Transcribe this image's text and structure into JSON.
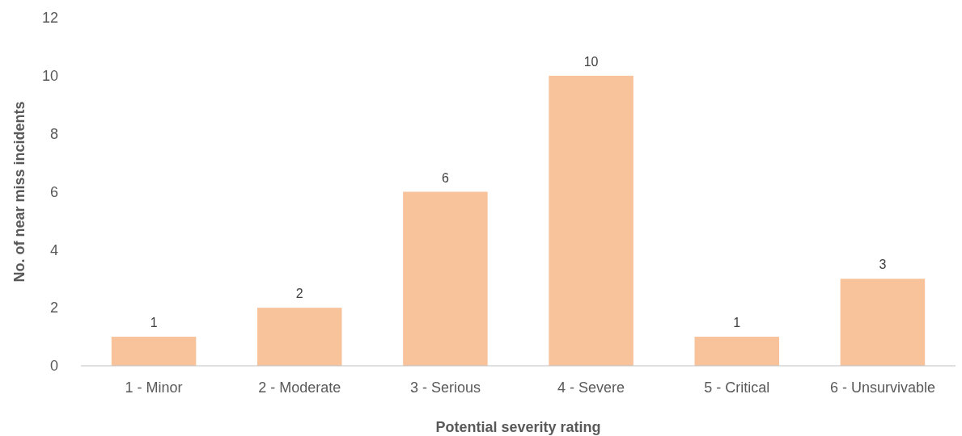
{
  "chart_data": {
    "type": "bar",
    "xlabel": "Potential severity rating",
    "ylabel": "No. of near miss incidents",
    "categories": [
      "1 - Minor",
      "2 - Moderate",
      "3 - Serious",
      "4 - Severe",
      "5 - Critical",
      "6 - Unsurvivable"
    ],
    "values": [
      1,
      2,
      6,
      10,
      1,
      3
    ],
    "color": "#f8c39b",
    "ylim": [
      0,
      12
    ],
    "yticks": [
      0,
      2,
      4,
      6,
      8,
      10,
      12
    ],
    "data_labels": true
  }
}
